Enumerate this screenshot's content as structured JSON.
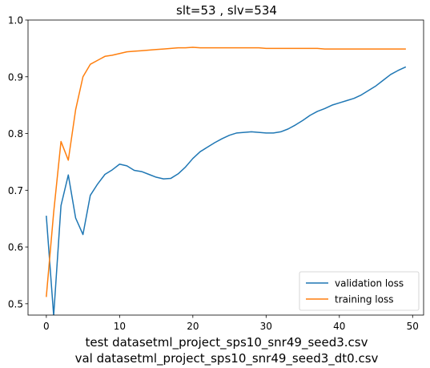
{
  "chart_data": {
    "type": "line",
    "title": "slt=53 , slv=534",
    "xlabel_lines": [
      "test datasetml_project_sps10_snr49_seed3.csv",
      "val datasetml_project_sps10_snr49_seed3_dt0.csv"
    ],
    "ylabel": "",
    "xlim": [
      -2.5,
      51.5
    ],
    "ylim": [
      0.48,
      1.0
    ],
    "xticks": [
      0,
      10,
      20,
      30,
      40,
      50
    ],
    "yticks": [
      0.5,
      0.6,
      0.7,
      0.8,
      0.9,
      1.0
    ],
    "ytick_labels": [
      "0.5",
      "0.6",
      "0.7",
      "0.8",
      "0.9",
      "1.0"
    ],
    "grid": false,
    "legend_position": "lower-right",
    "series": [
      {
        "name": "validation loss",
        "color": "#1f77b4",
        "x": [
          0,
          1,
          2,
          3,
          4,
          5,
          6,
          7,
          8,
          9,
          10,
          11,
          12,
          13,
          14,
          15,
          16,
          17,
          18,
          19,
          20,
          21,
          22,
          23,
          24,
          25,
          26,
          27,
          28,
          29,
          30,
          31,
          32,
          33,
          34,
          35,
          36,
          37,
          38,
          39,
          40,
          41,
          42,
          43,
          44,
          45,
          46,
          47,
          48,
          49
        ],
        "values": [
          0.654,
          0.479,
          0.673,
          0.727,
          0.651,
          0.622,
          0.691,
          0.711,
          0.728,
          0.736,
          0.746,
          0.743,
          0.735,
          0.733,
          0.728,
          0.723,
          0.72,
          0.721,
          0.729,
          0.741,
          0.756,
          0.768,
          0.776,
          0.784,
          0.791,
          0.797,
          0.801,
          0.802,
          0.803,
          0.802,
          0.801,
          0.801,
          0.803,
          0.808,
          0.815,
          0.823,
          0.832,
          0.839,
          0.844,
          0.85,
          0.854,
          0.858,
          0.862,
          0.868,
          0.876,
          0.884,
          0.894,
          0.904,
          0.911,
          0.917
        ]
      },
      {
        "name": "training loss",
        "color": "#ff7f0e",
        "x": [
          0,
          1,
          2,
          3,
          4,
          5,
          6,
          7,
          8,
          9,
          10,
          11,
          12,
          13,
          14,
          15,
          16,
          17,
          18,
          19,
          20,
          21,
          22,
          23,
          24,
          25,
          26,
          27,
          28,
          29,
          30,
          31,
          32,
          33,
          34,
          35,
          36,
          37,
          38,
          39,
          40,
          41,
          42,
          43,
          44,
          45,
          46,
          47,
          48,
          49
        ],
        "values": [
          0.513,
          0.661,
          0.786,
          0.753,
          0.842,
          0.9,
          0.922,
          0.929,
          0.936,
          0.938,
          0.941,
          0.944,
          0.945,
          0.946,
          0.947,
          0.948,
          0.949,
          0.95,
          0.951,
          0.951,
          0.952,
          0.951,
          0.951,
          0.951,
          0.951,
          0.951,
          0.951,
          0.951,
          0.951,
          0.951,
          0.95,
          0.95,
          0.95,
          0.95,
          0.95,
          0.95,
          0.95,
          0.95,
          0.949,
          0.949,
          0.949,
          0.949,
          0.949,
          0.949,
          0.949,
          0.949,
          0.949,
          0.949,
          0.949,
          0.949
        ]
      }
    ]
  }
}
